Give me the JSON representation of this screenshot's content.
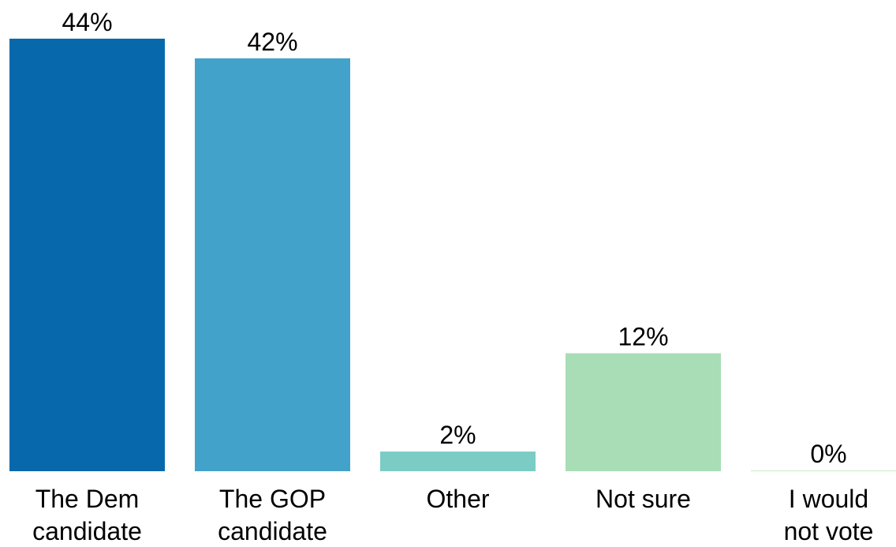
{
  "chart_data": {
    "type": "bar",
    "categories": [
      [
        "The Dem",
        "candidate"
      ],
      [
        "The GOP",
        "candidate"
      ],
      [
        "Other"
      ],
      [
        "Not sure"
      ],
      [
        "I would",
        "not vote"
      ]
    ],
    "values": [
      44,
      42,
      2,
      12,
      0
    ],
    "value_labels": [
      "44%",
      "42%",
      "2%",
      "12%",
      "0%"
    ],
    "colors": [
      "#0868ac",
      "#43a2ca",
      "#7bccc4",
      "#a8ddb5",
      "#ccebc5"
    ],
    "ylim": [
      0,
      44
    ],
    "grid": false,
    "legend": "none",
    "title": "",
    "xlabel": "",
    "ylabel": ""
  }
}
